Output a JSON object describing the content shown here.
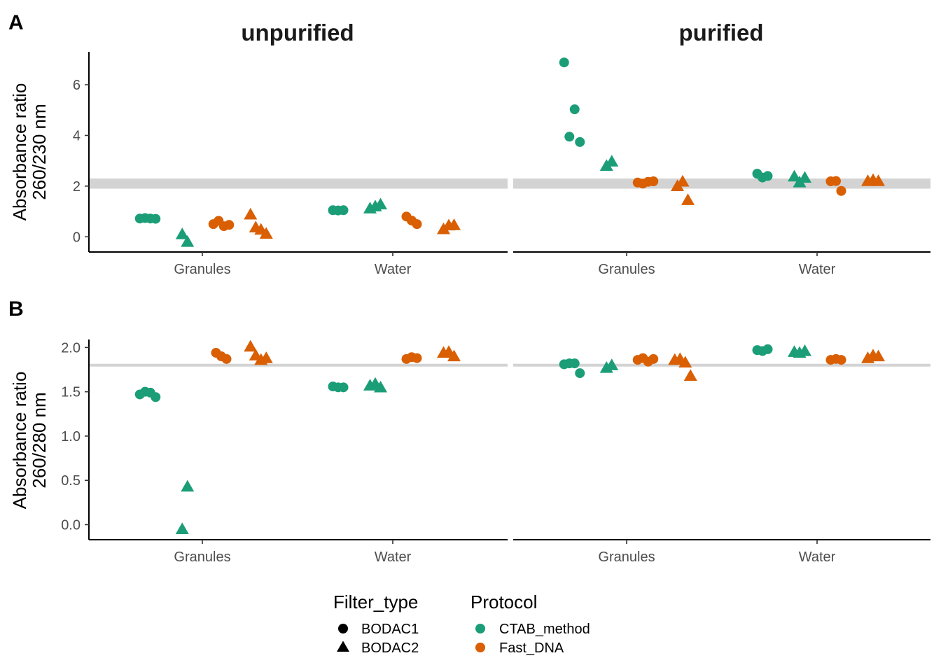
{
  "chart_data": {
    "type": "scatter",
    "facets": [
      "unpurified",
      "purified"
    ],
    "categories": [
      "Granules",
      "Water"
    ],
    "colors": {
      "CTAB_method": "#1b9e77",
      "Fast_DNA": "#d95f02",
      "reference_band": "#d3d3d3"
    },
    "legend": {
      "placement": "bottom",
      "shape": {
        "title": "Filter_type",
        "items": [
          {
            "label": "BODAC1",
            "marker": "circle"
          },
          {
            "label": "BODAC2",
            "marker": "triangle"
          }
        ]
      },
      "color": {
        "title": "Protocol",
        "items": [
          {
            "label": "CTAB_method",
            "color_key": "CTAB_method"
          },
          {
            "label": "Fast_DNA",
            "color_key": "Fast_DNA"
          }
        ]
      }
    },
    "panels": [
      {
        "label": "A",
        "ylabel": [
          "Absorbance ratio",
          "260/230 nm"
        ],
        "ylim": [
          -0.6,
          7.3
        ],
        "yticks": [
          0,
          2,
          4,
          6
        ],
        "ytick_labels": [
          "0",
          "2",
          "4",
          "6"
        ],
        "reference_band": [
          1.9,
          2.3
        ],
        "points": {
          "unpurified": {
            "Granules": [
              {
                "protocol": "CTAB_method",
                "filter": "BODAC1",
                "values": [
                  0.72,
                  0.74,
                  0.72,
                  0.71
                ]
              },
              {
                "protocol": "CTAB_method",
                "filter": "BODAC2",
                "values": [
                  0.1,
                  -0.2
                ]
              },
              {
                "protocol": "Fast_DNA",
                "filter": "BODAC1",
                "values": [
                  0.5,
                  0.63,
                  0.42,
                  0.47
                ]
              },
              {
                "protocol": "Fast_DNA",
                "filter": "BODAC2",
                "values": [
                  0.88,
                  0.37,
                  0.28,
                  0.12
                ]
              }
            ],
            "Water": [
              {
                "protocol": "CTAB_method",
                "filter": "BODAC1",
                "values": [
                  1.05,
                  1.04,
                  1.05
                ]
              },
              {
                "protocol": "CTAB_method",
                "filter": "BODAC2",
                "values": [
                  1.12,
                  1.2,
                  1.28
                ]
              },
              {
                "protocol": "Fast_DNA",
                "filter": "BODAC1",
                "values": [
                  0.8,
                  0.64,
                  0.5
                ]
              },
              {
                "protocol": "Fast_DNA",
                "filter": "BODAC2",
                "values": [
                  0.3,
                  0.45,
                  0.46
                ]
              }
            ]
          },
          "purified": {
            "Granules": [
              {
                "protocol": "CTAB_method",
                "filter": "BODAC1",
                "values": [
                  6.88,
                  3.95,
                  5.03,
                  3.74
                ]
              },
              {
                "protocol": "CTAB_method",
                "filter": "BODAC2",
                "values": [
                  2.8,
                  2.97
                ]
              },
              {
                "protocol": "Fast_DNA",
                "filter": "BODAC1",
                "values": [
                  2.14,
                  2.1,
                  2.17,
                  2.19
                ]
              },
              {
                "protocol": "Fast_DNA",
                "filter": "BODAC2",
                "values": [
                  2.0,
                  2.18,
                  1.45
                ]
              }
            ],
            "Water": [
              {
                "protocol": "CTAB_method",
                "filter": "BODAC1",
                "values": [
                  2.49,
                  2.34,
                  2.4
                ]
              },
              {
                "protocol": "CTAB_method",
                "filter": "BODAC2",
                "values": [
                  2.38,
                  2.15,
                  2.33
                ]
              },
              {
                "protocol": "Fast_DNA",
                "filter": "BODAC1",
                "values": [
                  2.19,
                  2.2,
                  1.81
                ]
              },
              {
                "protocol": "Fast_DNA",
                "filter": "BODAC2",
                "values": [
                  2.2,
                  2.24,
                  2.2
                ]
              }
            ]
          }
        }
      },
      {
        "label": "B",
        "ylabel": [
          "Absorbance ratio",
          "260/280 nm"
        ],
        "ylim": [
          -0.17,
          2.09
        ],
        "yticks": [
          0,
          0.5,
          1,
          1.5,
          2
        ],
        "ytick_labels": [
          "0.0",
          "0.5",
          "1.0",
          "1.5",
          "2.0"
        ],
        "reference_band": [
          1.79,
          1.81
        ],
        "points": {
          "unpurified": {
            "Granules": [
              {
                "protocol": "CTAB_method",
                "filter": "BODAC1",
                "values": [
                  1.47,
                  1.5,
                  1.49,
                  1.44
                ]
              },
              {
                "protocol": "CTAB_method",
                "filter": "BODAC2",
                "values": [
                  -0.05,
                  0.43
                ]
              },
              {
                "protocol": "Fast_DNA",
                "filter": "BODAC1",
                "values": [
                  1.94,
                  1.9,
                  1.87
                ]
              },
              {
                "protocol": "Fast_DNA",
                "filter": "BODAC2",
                "values": [
                  2.01,
                  1.91,
                  1.86,
                  1.88
                ]
              }
            ],
            "Water": [
              {
                "protocol": "CTAB_method",
                "filter": "BODAC1",
                "values": [
                  1.56,
                  1.55,
                  1.55
                ]
              },
              {
                "protocol": "CTAB_method",
                "filter": "BODAC2",
                "values": [
                  1.57,
                  1.59,
                  1.55
                ]
              },
              {
                "protocol": "Fast_DNA",
                "filter": "BODAC1",
                "values": [
                  1.87,
                  1.89,
                  1.88
                ]
              },
              {
                "protocol": "Fast_DNA",
                "filter": "BODAC2",
                "values": [
                  1.94,
                  1.95,
                  1.9
                ]
              }
            ]
          },
          "purified": {
            "Granules": [
              {
                "protocol": "CTAB_method",
                "filter": "BODAC1",
                "values": [
                  1.81,
                  1.82,
                  1.82,
                  1.71
                ]
              },
              {
                "protocol": "CTAB_method",
                "filter": "BODAC2",
                "values": [
                  1.77,
                  1.8
                ]
              },
              {
                "protocol": "Fast_DNA",
                "filter": "BODAC1",
                "values": [
                  1.86,
                  1.88,
                  1.84,
                  1.87
                ]
              },
              {
                "protocol": "Fast_DNA",
                "filter": "BODAC2",
                "values": [
                  1.86,
                  1.87,
                  1.83,
                  1.68
                ]
              }
            ],
            "Water": [
              {
                "protocol": "CTAB_method",
                "filter": "BODAC1",
                "values": [
                  1.97,
                  1.96,
                  1.98
                ]
              },
              {
                "protocol": "CTAB_method",
                "filter": "BODAC2",
                "values": [
                  1.95,
                  1.94,
                  1.96
                ]
              },
              {
                "protocol": "Fast_DNA",
                "filter": "BODAC1",
                "values": [
                  1.86,
                  1.87,
                  1.86
                ]
              },
              {
                "protocol": "Fast_DNA",
                "filter": "BODAC2",
                "values": [
                  1.88,
                  1.91,
                  1.9
                ]
              }
            ]
          }
        }
      }
    ]
  }
}
